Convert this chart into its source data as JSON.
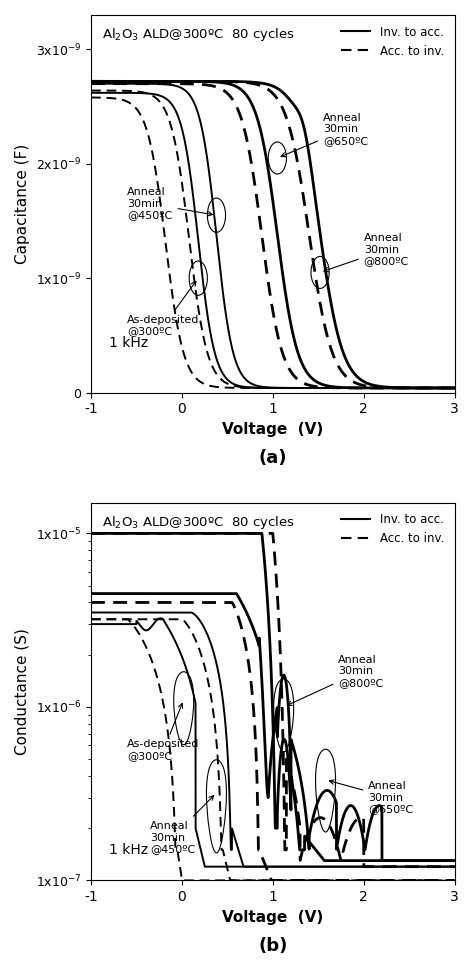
{
  "fig_width": 4.74,
  "fig_height": 9.64,
  "title_text": "Al$_2$O$_3$ ALD@300ºC  80 cycles",
  "freq_label": "1 kHz",
  "legend_solid": "Inv. to acc.",
  "legend_dashed": "Acc. to inv.",
  "panel_a": {
    "ylabel": "Capacitance (F)",
    "xlabel": "Voltage  (V)",
    "panel_label": "(a)",
    "xlim": [
      -1,
      3
    ],
    "ylim": [
      0,
      3.3e-09
    ],
    "yticks": [
      0,
      1e-09,
      2e-09,
      3e-09
    ],
    "ytick_labels": [
      "0",
      "1x10$^{-9}$",
      "2x10$^{-9}$",
      "3x10$^{-9}$"
    ],
    "xticks": [
      -1,
      0,
      1,
      2,
      3
    ]
  },
  "panel_b": {
    "ylabel": "Conductance (S)",
    "xlabel": "Voltage  (V)",
    "panel_label": "(b)",
    "xlim": [
      -1,
      3
    ],
    "ylim_log": [
      1e-07,
      1.5e-05
    ],
    "yticks_log": [
      1e-07,
      1e-06,
      1e-05
    ],
    "ytick_labels_log": [
      "1x10$^{-7}$",
      "1x10$^{-6}$",
      "1x10$^{-5}$"
    ],
    "xticks": [
      -1,
      0,
      1,
      2,
      3
    ]
  }
}
